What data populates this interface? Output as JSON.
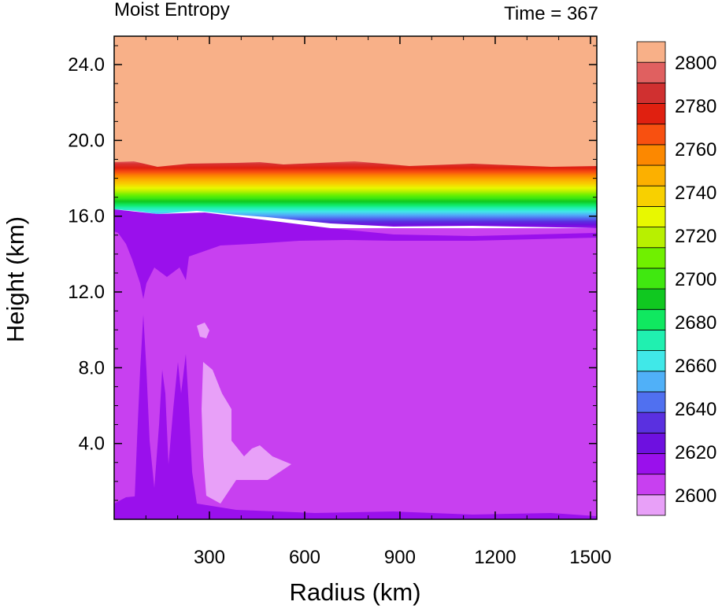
{
  "chart_data": {
    "type": "heatmap",
    "title_left": "Moist Entropy",
    "title_right": "Time = 367",
    "xlabel": "Radius (km)",
    "ylabel": "Height (km)",
    "xlim": [
      0,
      1520
    ],
    "ylim": [
      0,
      25.5
    ],
    "xticks": [
      300,
      600,
      900,
      1200,
      1500
    ],
    "yticks": [
      4.0,
      8.0,
      12.0,
      16.0,
      20.0,
      24.0
    ],
    "ytick_labels": [
      "4.0",
      "8.0",
      "12.0",
      "16.0",
      "20.0",
      "24.0"
    ],
    "colorbar": {
      "labels": [
        "2600",
        "2620",
        "2640",
        "2660",
        "2680",
        "2700",
        "2720",
        "2740",
        "2760",
        "2780",
        "2800"
      ],
      "colors": [
        "#e8a0f8",
        "#c840f0",
        "#9a10ec",
        "#6e10e0",
        "#5a30e0",
        "#5070f0",
        "#50b0f8",
        "#40e8e8",
        "#20f0b0",
        "#10e860",
        "#10c820",
        "#40e810",
        "#70f000",
        "#b8f000",
        "#e8f800",
        "#f8d000",
        "#fcb000",
        "#fc8800",
        "#f85010",
        "#e02010",
        "#d03030",
        "#e06060",
        "#f8b088"
      ]
    },
    "field_description_levels": {
      "stratosphere_value": 2810,
      "upper_transition_km": [
        15.0,
        19.0
      ],
      "troposphere_value": 2605,
      "low_patch_value": 2595
    }
  }
}
